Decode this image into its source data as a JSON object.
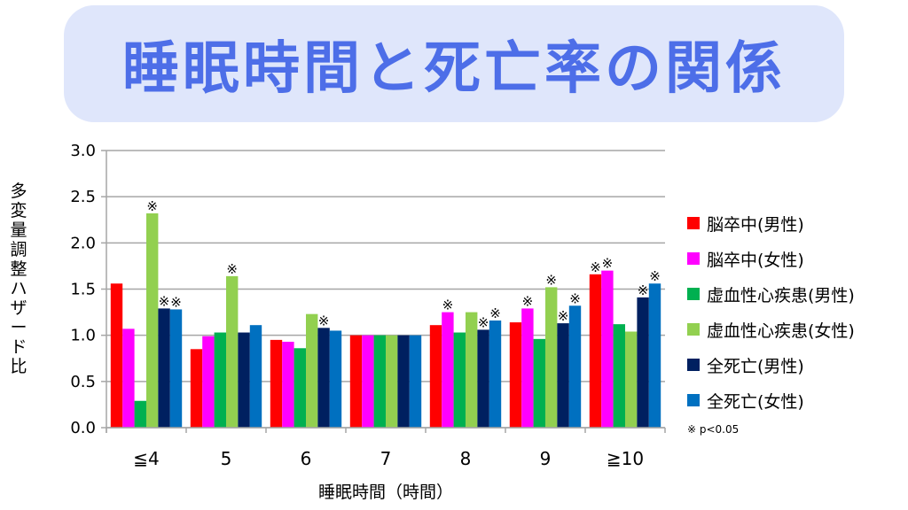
{
  "title": "睡眠時間と死亡率の関係",
  "chart_data": {
    "type": "bar",
    "title": "睡眠時間と死亡率の関係",
    "xlabel": "睡眠時間（時間）",
    "ylabel": "多変量調整ハザード比",
    "ylim": [
      0,
      3.0
    ],
    "yticks": [
      "0.0",
      "0.5",
      "1.0",
      "1.5",
      "2.0",
      "2.5",
      "3.0"
    ],
    "grid": true,
    "legend_position": "right",
    "categories": [
      "≦4",
      "5",
      "6",
      "7",
      "8",
      "9",
      "≧10"
    ],
    "series": [
      {
        "name": "脳卒中(男性)",
        "color": "#ff0000",
        "values": [
          1.56,
          0.85,
          0.95,
          1.0,
          1.11,
          1.14,
          1.66
        ],
        "significant": [
          false,
          false,
          false,
          false,
          false,
          false,
          true
        ]
      },
      {
        "name": "脳卒中(女性)",
        "color": "#ff00ff",
        "values": [
          1.07,
          0.99,
          0.93,
          1.0,
          1.25,
          1.29,
          1.7
        ],
        "significant": [
          false,
          false,
          false,
          false,
          true,
          true,
          true
        ]
      },
      {
        "name": "虚血性心疾患(男性)",
        "color": "#00b050",
        "values": [
          0.29,
          1.03,
          0.86,
          1.0,
          1.03,
          0.96,
          1.12
        ],
        "significant": [
          false,
          false,
          false,
          false,
          false,
          false,
          false
        ]
      },
      {
        "name": "虚血性心疾患(女性)",
        "color": "#92d050",
        "values": [
          2.32,
          1.64,
          1.23,
          1.0,
          1.25,
          1.52,
          1.04
        ],
        "significant": [
          true,
          true,
          false,
          false,
          false,
          true,
          false
        ]
      },
      {
        "name": "全死亡(男性)",
        "color": "#002060",
        "values": [
          1.29,
          1.03,
          1.08,
          1.0,
          1.06,
          1.13,
          1.41
        ],
        "significant": [
          true,
          false,
          true,
          false,
          true,
          true,
          true
        ]
      },
      {
        "name": "全死亡(女性)",
        "color": "#0070c0",
        "values": [
          1.28,
          1.11,
          1.05,
          1.0,
          1.16,
          1.32,
          1.56
        ],
        "significant": [
          true,
          false,
          false,
          false,
          true,
          true,
          true
        ]
      }
    ],
    "sig_mark": "※",
    "note": "※ p<0.05"
  }
}
